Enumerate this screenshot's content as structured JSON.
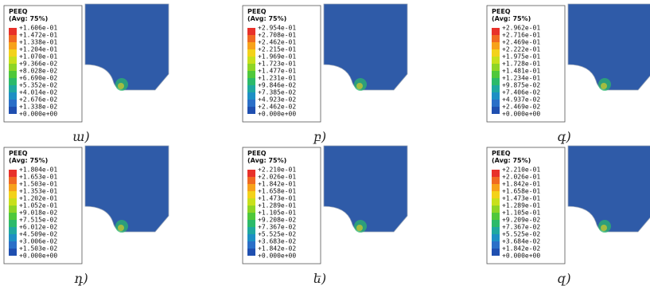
{
  "panels": [
    {
      "title": "PEEQ",
      "avg": "(Avg: 75%)",
      "caption": "ա)",
      "values": [
        "+1.606e-01",
        "+1.472e-01",
        "+1.338e-01",
        "+1.204e-01",
        "+1.070e-01",
        "+9.366e-02",
        "+8.028e-02",
        "+6.690e-02",
        "+5.352e-02",
        "+4.014e-02",
        "+2.676e-02",
        "+1.338e-02",
        "+0.000e+00"
      ]
    },
    {
      "title": "PEEQ",
      "avg": "(Avg: 75%)",
      "caption": "բ)",
      "values": [
        "+2.954e-01",
        "+2.708e-01",
        "+2.462e-01",
        "+2.215e-01",
        "+1.969e-01",
        "+1.723e-01",
        "+1.477e-01",
        "+1.231e-01",
        "+9.846e-02",
        "+7.385e-02",
        "+4.923e-02",
        "+2.462e-02",
        "+0.000e+00"
      ]
    },
    {
      "title": "PEEQ",
      "avg": "(Avg: 75%)",
      "caption": "գ)",
      "values": [
        "+2.962e-01",
        "+2.716e-01",
        "+2.469e-01",
        "+2.222e-01",
        "+1.975e-01",
        "+1.728e-01",
        "+1.481e-01",
        "+1.234e-01",
        "+9.875e-02",
        "+7.406e-02",
        "+4.937e-02",
        "+2.469e-02",
        "+0.000e+00"
      ]
    },
    {
      "title": "PEEQ",
      "avg": "(Avg: 75%)",
      "caption": "դ)",
      "values": [
        "+1.804e-01",
        "+1.653e-01",
        "+1.503e-01",
        "+1.353e-01",
        "+1.202e-01",
        "+1.052e-01",
        "+9.018e-02",
        "+7.515e-02",
        "+6.012e-02",
        "+4.509e-02",
        "+3.006e-02",
        "+1.503e-02",
        "+0.000e+00"
      ]
    },
    {
      "title": "PEEQ",
      "avg": "(Avg: 75%)",
      "caption": "ե)",
      "values": [
        "+2.210e-01",
        "+2.026e-01",
        "+1.842e-01",
        "+1.658e-01",
        "+1.473e-01",
        "+1.289e-01",
        "+1.105e-01",
        "+9.208e-02",
        "+7.367e-02",
        "+5.525e-02",
        "+3.683e-02",
        "+1.842e-02",
        "+0.000e+00"
      ]
    },
    {
      "title": "PEEQ",
      "avg": "(Avg: 75%)",
      "caption": "զ)",
      "values": [
        "+2.210e-01",
        "+2.026e-01",
        "+1.842e-01",
        "+1.658e-01",
        "+1.473e-01",
        "+1.289e-01",
        "+1.105e-01",
        "+9.209e-02",
        "+7.367e-02",
        "+5.525e-02",
        "+3.684e-02",
        "+1.842e-02",
        "+0.000e+00"
      ]
    }
  ]
}
